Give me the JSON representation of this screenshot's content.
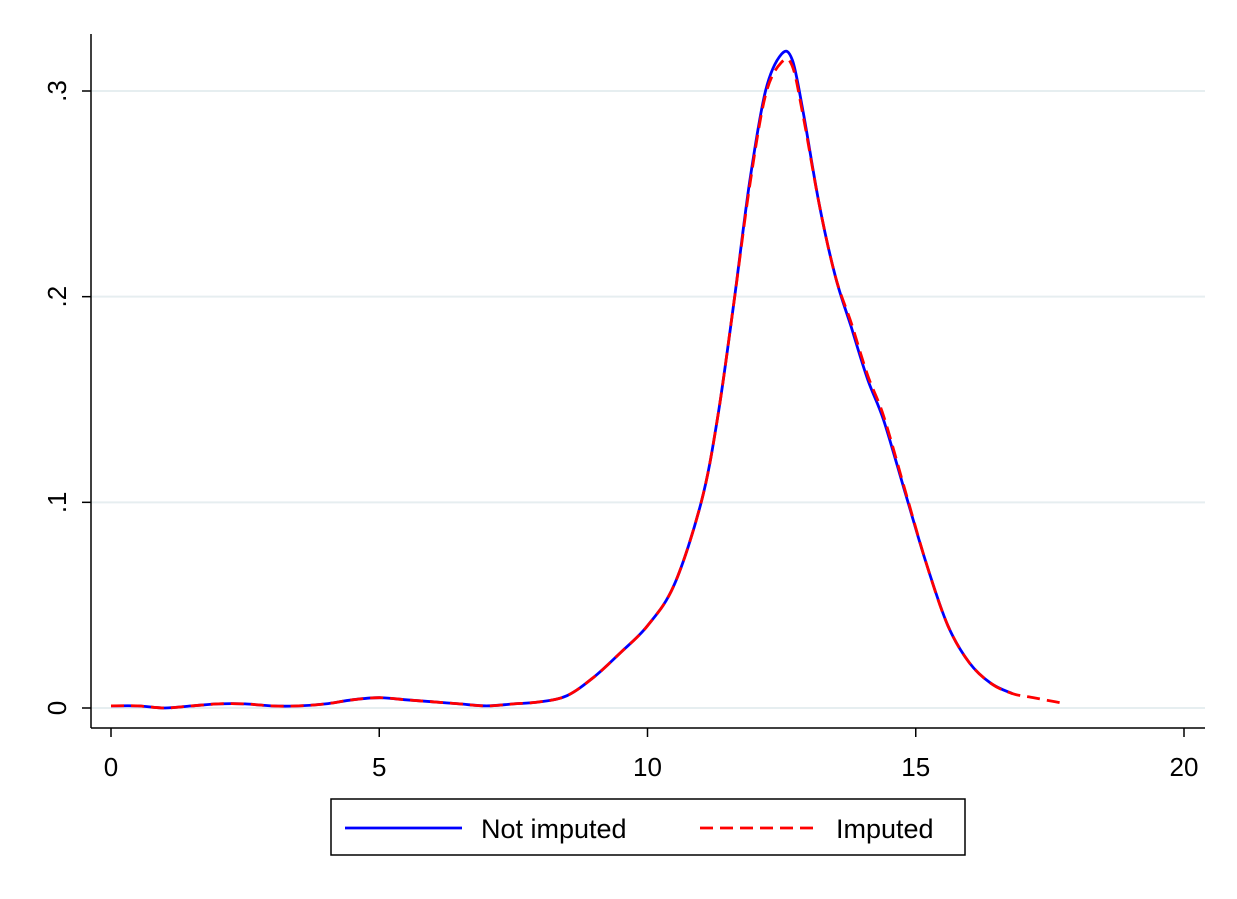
{
  "chart_data": {
    "type": "line",
    "title": "",
    "xlabel": "",
    "ylabel": "",
    "xlim": [
      0,
      20
    ],
    "ylim": [
      0,
      0.3
    ],
    "x_ticks": [
      0,
      5,
      10,
      15,
      20
    ],
    "x_tick_labels": [
      "0",
      "5",
      "10",
      "15",
      "20"
    ],
    "y_ticks": [
      0,
      0.1,
      0.2,
      0.3
    ],
    "y_tick_labels": [
      "0",
      ".1",
      ".2",
      ".3"
    ],
    "grid": "horizontal",
    "legend_position": "bottom",
    "series": [
      {
        "name": "Not imputed",
        "color": "#0000ff",
        "style": "solid",
        "x": [
          0,
          0.5,
          1.0,
          1.5,
          2.0,
          2.5,
          3.0,
          3.5,
          4.0,
          4.5,
          5.0,
          5.5,
          6.0,
          6.5,
          7.0,
          7.5,
          8.0,
          8.5,
          9.0,
          9.5,
          10.0,
          10.5,
          11.0,
          11.3,
          11.6,
          11.9,
          12.2,
          12.5,
          12.7,
          12.9,
          13.2,
          13.5,
          13.8,
          14.1,
          14.4,
          14.8,
          15.2,
          15.6,
          16.0,
          16.4,
          16.8
        ],
        "y": [
          0.001,
          0.001,
          0.0,
          0.001,
          0.002,
          0.002,
          0.001,
          0.001,
          0.002,
          0.004,
          0.005,
          0.004,
          0.003,
          0.002,
          0.001,
          0.002,
          0.003,
          0.006,
          0.015,
          0.027,
          0.04,
          0.06,
          0.1,
          0.14,
          0.195,
          0.255,
          0.3,
          0.318,
          0.315,
          0.29,
          0.245,
          0.21,
          0.185,
          0.16,
          0.14,
          0.105,
          0.07,
          0.04,
          0.022,
          0.012,
          0.007
        ]
      },
      {
        "name": "Imputed",
        "color": "#ff0000",
        "style": "dashed",
        "x": [
          0,
          0.5,
          1.0,
          1.5,
          2.0,
          2.5,
          3.0,
          3.5,
          4.0,
          4.5,
          5.0,
          5.5,
          6.0,
          6.5,
          7.0,
          7.5,
          8.0,
          8.5,
          9.0,
          9.5,
          10.0,
          10.5,
          11.0,
          11.3,
          11.6,
          11.9,
          12.2,
          12.5,
          12.7,
          12.9,
          13.2,
          13.5,
          13.8,
          14.1,
          14.4,
          14.8,
          15.2,
          15.6,
          16.0,
          16.4,
          16.8,
          17.2,
          17.6,
          17.8
        ],
        "y": [
          0.001,
          0.001,
          0.0,
          0.001,
          0.002,
          0.002,
          0.001,
          0.001,
          0.002,
          0.004,
          0.005,
          0.004,
          0.003,
          0.002,
          0.001,
          0.002,
          0.003,
          0.006,
          0.015,
          0.027,
          0.04,
          0.06,
          0.1,
          0.14,
          0.195,
          0.253,
          0.298,
          0.314,
          0.312,
          0.288,
          0.245,
          0.21,
          0.187,
          0.162,
          0.142,
          0.106,
          0.07,
          0.04,
          0.022,
          0.012,
          0.007,
          0.005,
          0.003,
          0.002
        ]
      }
    ]
  }
}
